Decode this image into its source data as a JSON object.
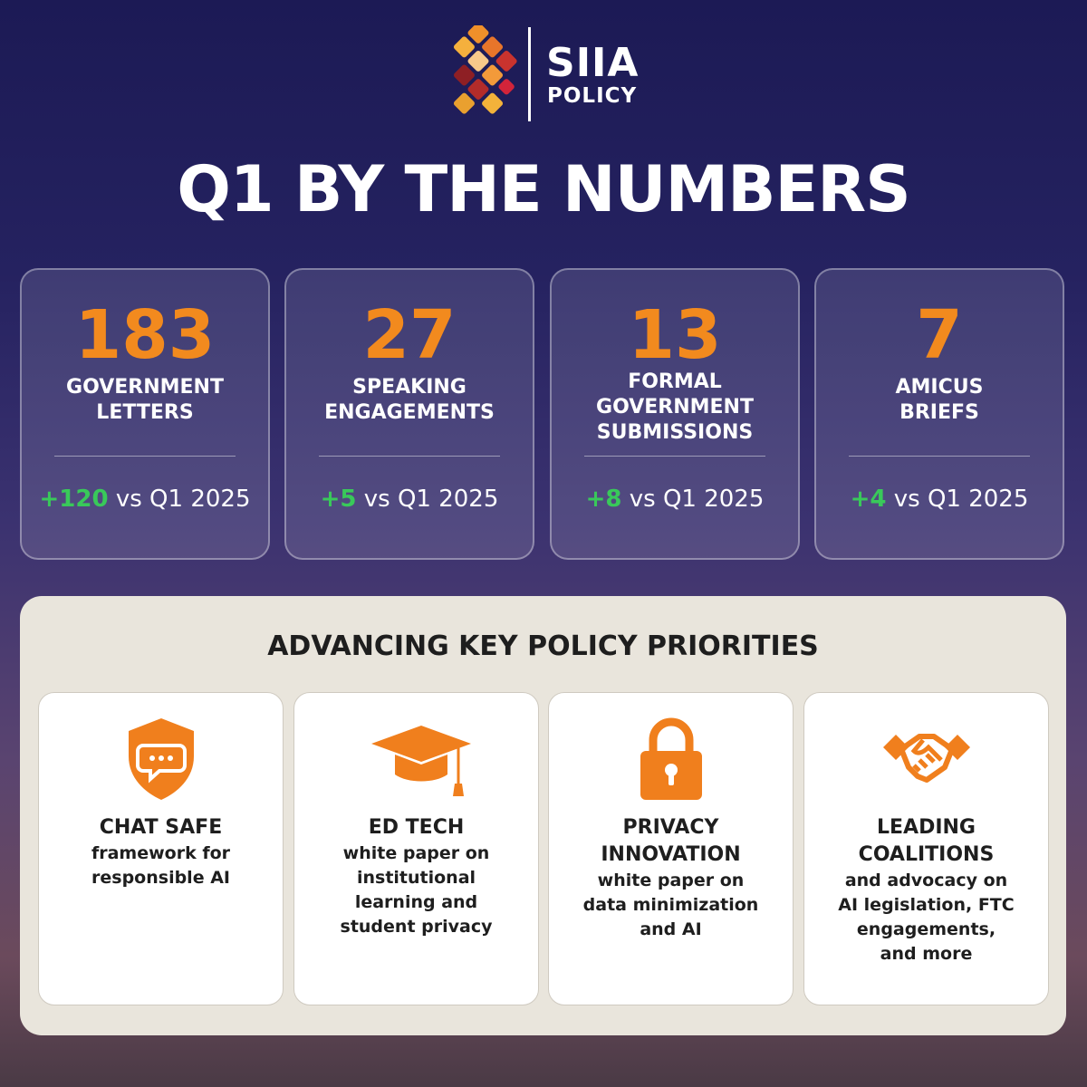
{
  "logo": {
    "name": "SIIA",
    "subtitle": "POLICY"
  },
  "title": "Q1 BY THE NUMBERS",
  "stats": [
    {
      "number": "183",
      "label": [
        "GOVERNMENT",
        "LETTERS"
      ],
      "change": "+120",
      "comparison": "vs Q1 2025"
    },
    {
      "number": "27",
      "label": [
        "SPEAKING",
        "ENGAGEMENTS"
      ],
      "change": "+5",
      "comparison": "vs Q1 2025"
    },
    {
      "number": "13",
      "label": [
        "FORMAL",
        "GOVERNMENT",
        "SUBMISSIONS"
      ],
      "change": "+8",
      "comparison": "vs Q1 2025"
    },
    {
      "number": "7",
      "label": [
        "AMICUS",
        "BRIEFS"
      ],
      "change": "+4",
      "comparison": "vs Q1 2025"
    }
  ],
  "priorities": {
    "title": "ADVANCING KEY POLICY PRIORITIES",
    "items": [
      {
        "heading": [
          "CHAT SAFE"
        ],
        "description": [
          "framework for",
          "responsible AI"
        ]
      },
      {
        "heading": [
          "ED TECH"
        ],
        "description": [
          "white paper on",
          "institutional",
          "learning and",
          "student privacy"
        ]
      },
      {
        "heading": [
          "PRIVACY",
          "INNOVATION"
        ],
        "description": [
          "white paper on",
          "data minimization",
          "and AI"
        ]
      },
      {
        "heading": [
          "LEADING",
          "COALITIONS"
        ],
        "description": [
          "and advocacy on",
          "AI legislation, FTC",
          "engagements,",
          "and more"
        ]
      }
    ]
  }
}
